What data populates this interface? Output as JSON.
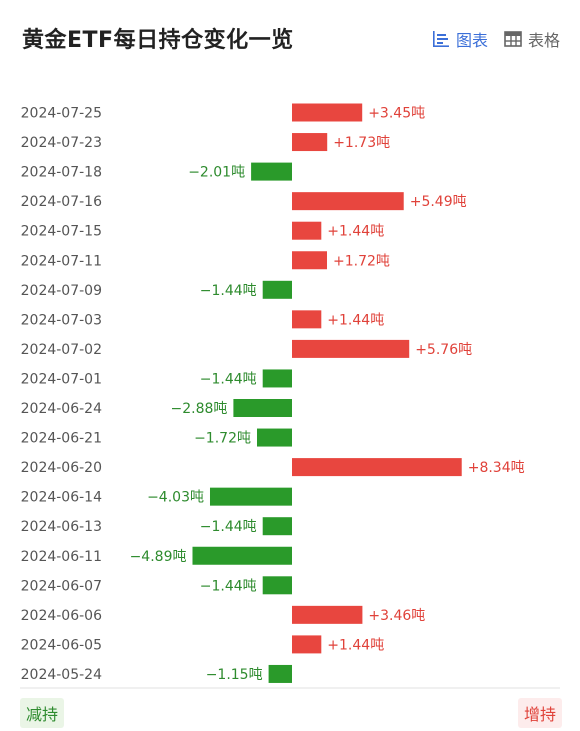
{
  "header": {
    "title": "黄金ETF每日持仓变化一览",
    "tabs": [
      {
        "label": "图表",
        "icon": "bar-chart-icon",
        "active": true
      },
      {
        "label": "表格",
        "icon": "table-icon",
        "active": false
      }
    ]
  },
  "footer": {
    "reduce_label": "减持",
    "increase_label": "增持"
  },
  "colors": {
    "positive": "#e8463f",
    "negative": "#2a9a2a",
    "positive_text": "#e0423a",
    "negative_text": "#2e8b2e",
    "accent": "#3b6fd8"
  },
  "chart_data": {
    "type": "bar",
    "orientation": "horizontal",
    "categories": [
      "2024-07-25",
      "2024-07-23",
      "2024-07-18",
      "2024-07-16",
      "2024-07-15",
      "2024-07-11",
      "2024-07-09",
      "2024-07-03",
      "2024-07-02",
      "2024-07-01",
      "2024-06-24",
      "2024-06-21",
      "2024-06-20",
      "2024-06-14",
      "2024-06-13",
      "2024-06-11",
      "2024-06-07",
      "2024-06-06",
      "2024-06-05",
      "2024-05-24"
    ],
    "values": [
      3.45,
      1.73,
      -2.01,
      5.49,
      1.44,
      1.72,
      -1.44,
      1.44,
      5.76,
      -1.44,
      -2.88,
      -1.72,
      8.34,
      -4.03,
      -1.44,
      -4.89,
      -1.44,
      3.46,
      1.44,
      -1.15
    ],
    "labels": [
      "+3.45吨",
      "+1.73吨",
      "−2.01吨",
      "+5.49吨",
      "+1.44吨",
      "+1.72吨",
      "−1.44吨",
      "+1.44吨",
      "+5.76吨",
      "−1.44吨",
      "−2.88吨",
      "−1.72吨",
      "+8.34吨",
      "−4.03吨",
      "−1.44吨",
      "−4.89吨",
      "−1.44吨",
      "+3.46吨",
      "+1.44吨",
      "−1.15吨"
    ],
    "xticks": [
      -6,
      -3,
      0,
      3,
      6,
      9
    ],
    "xtick_labels": [
      "−6",
      "−3",
      "0",
      "3",
      "6",
      "9"
    ],
    "xlim": [
      -6,
      9
    ],
    "title": "",
    "xlabel": "",
    "ylabel": "",
    "grid": false
  }
}
